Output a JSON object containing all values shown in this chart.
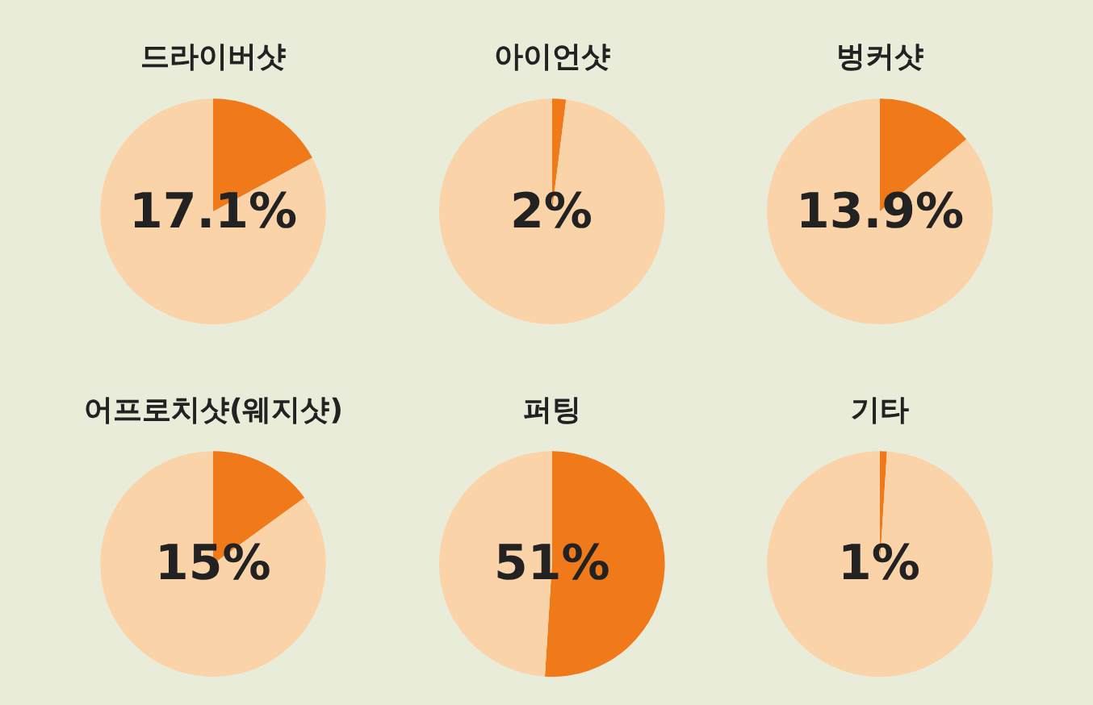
{
  "chart_data": [
    {
      "type": "pie",
      "title": "드라이버샷",
      "categories": [
        null,
        null
      ],
      "values": [
        17.1,
        82.9
      ],
      "colors": [
        "#f07a1a",
        "#fbd3a8"
      ],
      "annotations": [
        "17.1%"
      ]
    },
    {
      "type": "pie",
      "title": "아이언샷",
      "categories": [
        null,
        null
      ],
      "values": [
        2,
        98
      ],
      "colors": [
        "#f07a1a",
        "#fbd3a8"
      ],
      "annotations": [
        "2%"
      ]
    },
    {
      "type": "pie",
      "title": "벙커샷",
      "categories": [
        null,
        null
      ],
      "values": [
        13.9,
        86.1
      ],
      "colors": [
        "#f07a1a",
        "#fbd3a8"
      ],
      "annotations": [
        "13.9%"
      ]
    },
    {
      "type": "pie",
      "title": "어프로치샷(웨지샷)",
      "categories": [
        null,
        null
      ],
      "values": [
        15,
        85
      ],
      "colors": [
        "#f07a1a",
        "#fbd3a8"
      ],
      "annotations": [
        "15%"
      ]
    },
    {
      "type": "pie",
      "title": "퍼팅",
      "categories": [
        null,
        null
      ],
      "values": [
        51,
        49
      ],
      "colors": [
        "#f07a1a",
        "#fbd3a8"
      ],
      "annotations": [
        "51%"
      ]
    },
    {
      "type": "pie",
      "title": "기타",
      "categories": [
        null,
        null
      ],
      "values": [
        1,
        99
      ],
      "colors": [
        "#f07a1a",
        "#fbd3a8"
      ],
      "annotations": [
        "1%"
      ]
    }
  ]
}
